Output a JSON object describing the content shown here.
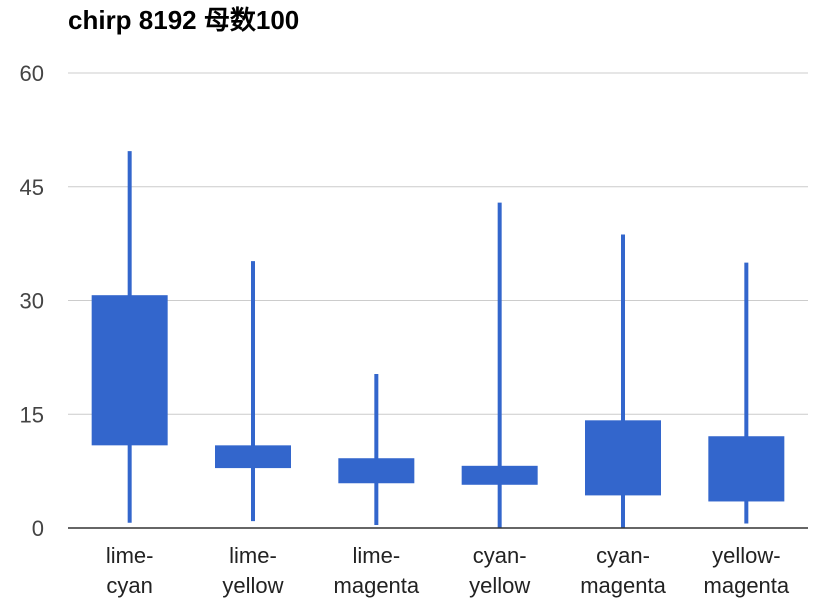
{
  "chart_data": {
    "type": "candlestick",
    "title": "chirp 8192 母数100",
    "xlabel": "",
    "ylabel": "",
    "ylim": [
      0,
      60
    ],
    "yticks": [
      0,
      15,
      30,
      45,
      60
    ],
    "grid": true,
    "legend": "none",
    "color": "#3366cc",
    "categories": [
      [
        "lime-",
        "cyan"
      ],
      [
        "lime-",
        "yellow"
      ],
      [
        "lime-",
        "magenta"
      ],
      [
        "cyan-",
        "yellow"
      ],
      [
        "cyan-",
        "magenta"
      ],
      [
        "yellow-",
        "magenta"
      ]
    ],
    "series": [
      {
        "low": [
          0.7,
          0.9,
          0.4,
          0.0,
          0.0,
          0.6
        ],
        "open": [
          30.7,
          10.9,
          9.2,
          8.2,
          14.2,
          12.1
        ],
        "close": [
          10.9,
          7.9,
          5.9,
          5.7,
          4.3,
          3.5
        ],
        "high": [
          49.7,
          35.2,
          20.3,
          42.9,
          38.7,
          35.0
        ]
      }
    ]
  }
}
